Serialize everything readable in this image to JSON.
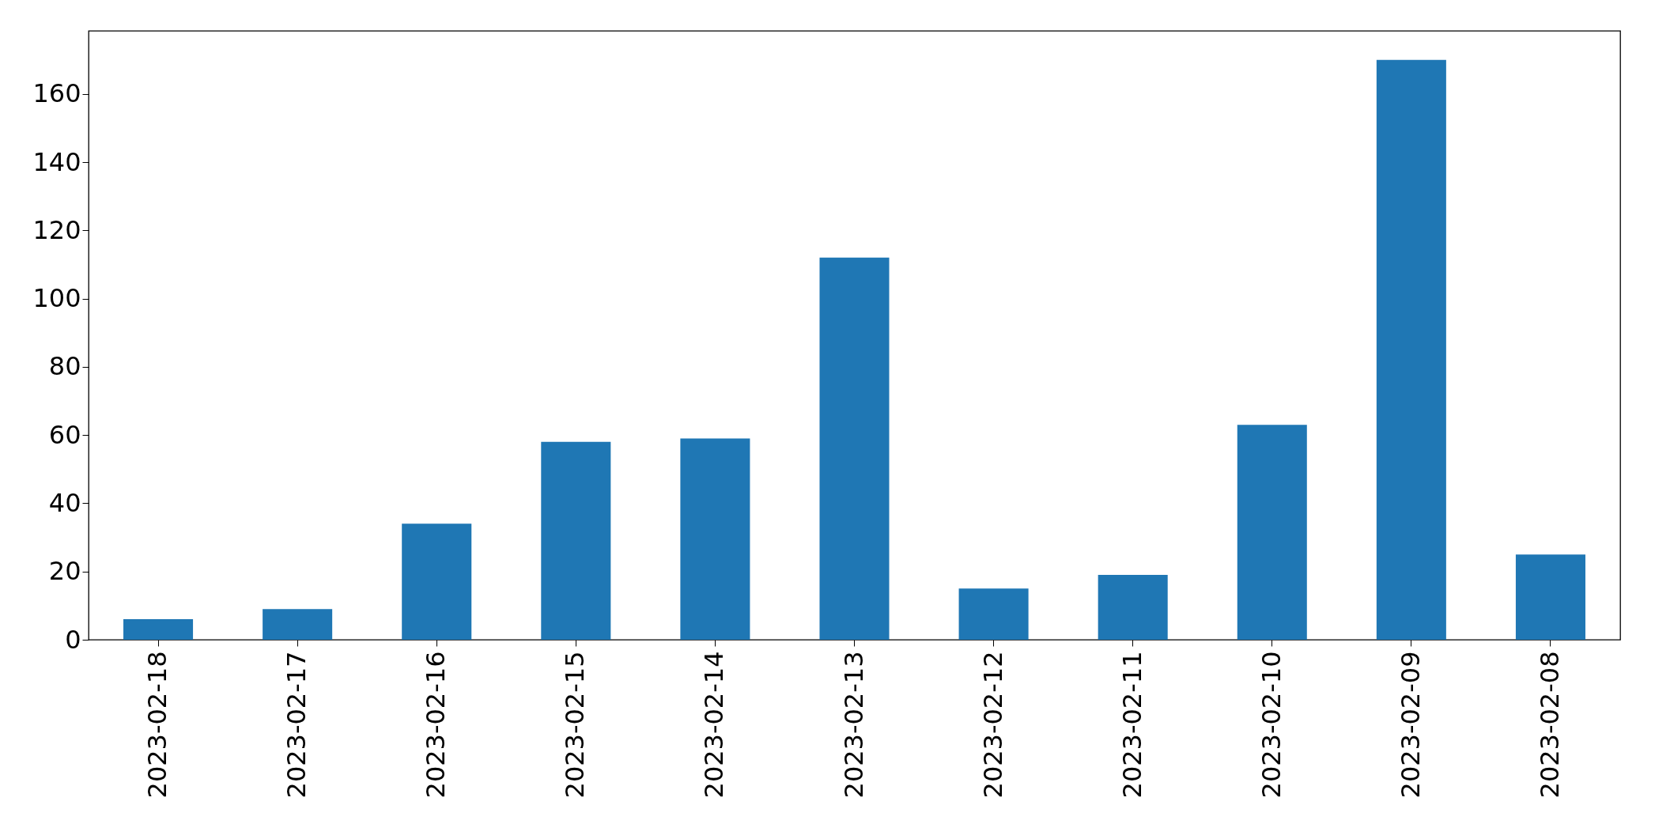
{
  "chart_data": {
    "type": "bar",
    "categories": [
      "2023-02-18",
      "2023-02-17",
      "2023-02-16",
      "2023-02-15",
      "2023-02-14",
      "2023-02-13",
      "2023-02-12",
      "2023-02-11",
      "2023-02-10",
      "2023-02-09",
      "2023-02-08"
    ],
    "values": [
      6,
      9,
      34,
      58,
      59,
      112,
      15,
      19,
      63,
      170,
      25
    ],
    "color": "#1f77b4",
    "ylim": [
      0,
      178.5
    ],
    "yticks": [
      0,
      20,
      40,
      60,
      80,
      100,
      120,
      140,
      160
    ],
    "grid": false
  }
}
